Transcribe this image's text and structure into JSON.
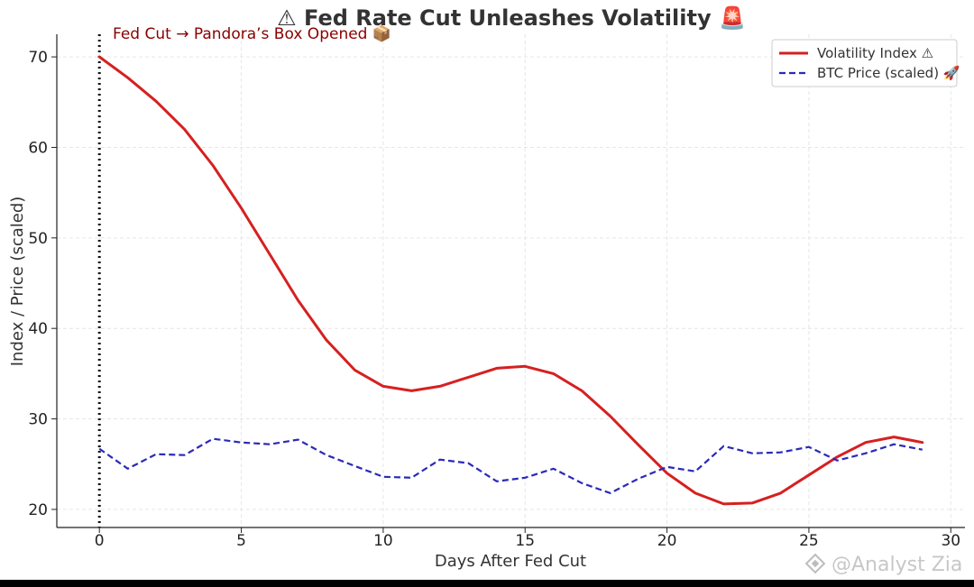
{
  "chart_data": {
    "type": "line",
    "title": "⚠ Fed Rate Cut Unleashes Volatility 🚨",
    "xlabel": "Days After Fed Cut",
    "ylabel": "Index / Price (scaled)",
    "xlim": [
      -1.5,
      30.5
    ],
    "ylim": [
      18,
      72.5
    ],
    "xticks": [
      0,
      5,
      10,
      15,
      20,
      25,
      30
    ],
    "yticks": [
      20,
      30,
      40,
      50,
      60,
      70
    ],
    "grid": true,
    "legend_position": "top-right",
    "x": [
      0,
      1,
      2,
      3,
      4,
      5,
      6,
      7,
      8,
      9,
      10,
      11,
      12,
      13,
      14,
      15,
      16,
      17,
      18,
      19,
      20,
      21,
      22,
      23,
      24,
      25,
      26,
      27,
      28,
      29
    ],
    "series": [
      {
        "name": "Volatility Index ⚠",
        "style": "solid",
        "color": "#d62020",
        "values": [
          70.0,
          67.7,
          65.1,
          62.0,
          58.0,
          53.3,
          48.2,
          43.1,
          38.7,
          35.4,
          33.6,
          33.1,
          33.6,
          34.6,
          35.6,
          35.8,
          35.0,
          33.1,
          30.3,
          27.1,
          24.0,
          21.8,
          20.6,
          20.7,
          21.8,
          23.8,
          25.8,
          27.4,
          28.0,
          27.4
        ]
      },
      {
        "name": "BTC Price (scaled) 🚀",
        "style": "dashed",
        "color": "#2a2ab8",
        "values": [
          26.7,
          24.5,
          26.1,
          26.0,
          27.8,
          27.4,
          27.2,
          27.7,
          26.0,
          24.8,
          23.6,
          23.5,
          25.5,
          25.1,
          23.1,
          23.5,
          24.5,
          22.9,
          21.8,
          23.4,
          24.7,
          24.2,
          27.0,
          26.2,
          26.3,
          26.9,
          25.4,
          26.2,
          27.2,
          26.6
        ]
      }
    ],
    "annotations": [
      {
        "type": "vline",
        "x": 0,
        "style": "dotted",
        "color": "#111111"
      },
      {
        "type": "text",
        "text": "Fed Cut → Pandora’s Box Opened 📦"
      }
    ]
  },
  "watermark": "@Analyst Zia"
}
